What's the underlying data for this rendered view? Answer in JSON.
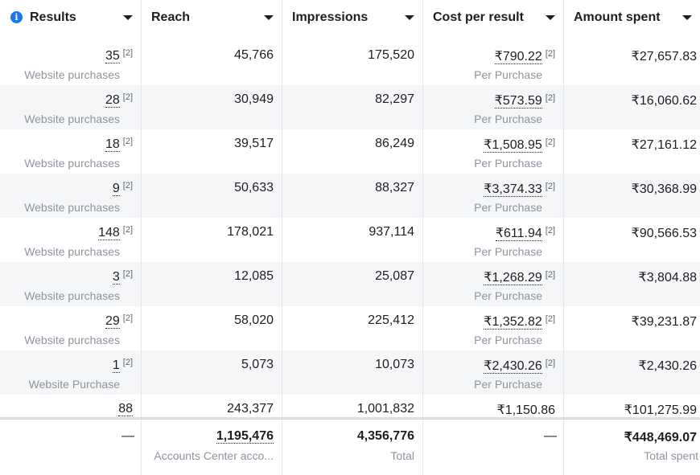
{
  "columns": [
    {
      "key": "results",
      "label": "Results",
      "has_info": true
    },
    {
      "key": "reach",
      "label": "Reach"
    },
    {
      "key": "impressions",
      "label": "Impressions"
    },
    {
      "key": "cost",
      "label": "Cost per result"
    },
    {
      "key": "spent",
      "label": "Amount spent"
    }
  ],
  "note_marker": "[2]",
  "rows": [
    {
      "results": "35",
      "results_sub": "Website purchases",
      "reach": "45,766",
      "impressions": "175,520",
      "cost": "₹790.22",
      "cost_sub": "Per Purchase",
      "spent": "₹27,657.83"
    },
    {
      "results": "28",
      "results_sub": "Website purchases",
      "reach": "30,949",
      "impressions": "82,297",
      "cost": "₹573.59",
      "cost_sub": "Per Purchase",
      "spent": "₹16,060.62"
    },
    {
      "results": "18",
      "results_sub": "Website purchases",
      "reach": "39,517",
      "impressions": "86,249",
      "cost": "₹1,508.95",
      "cost_sub": "Per Purchase",
      "spent": "₹27,161.12"
    },
    {
      "results": "9",
      "results_sub": "Website purchases",
      "reach": "50,633",
      "impressions": "88,327",
      "cost": "₹3,374.33",
      "cost_sub": "Per Purchase",
      "spent": "₹30,368.99"
    },
    {
      "results": "148",
      "results_sub": "Website purchases",
      "reach": "178,021",
      "impressions": "937,114",
      "cost": "₹611.94",
      "cost_sub": "Per Purchase",
      "spent": "₹90,566.53"
    },
    {
      "results": "3",
      "results_sub": "Website purchases",
      "reach": "12,085",
      "impressions": "25,087",
      "cost": "₹1,268.29",
      "cost_sub": "Per Purchase",
      "spent": "₹3,804.88"
    },
    {
      "results": "29",
      "results_sub": "Website purchases",
      "reach": "58,020",
      "impressions": "225,412",
      "cost": "₹1,352.82",
      "cost_sub": "Per Purchase",
      "spent": "₹39,231.87"
    },
    {
      "results": "1",
      "results_sub": "Website Purchase",
      "reach": "5,073",
      "impressions": "10,073",
      "cost": "₹2,430.26",
      "cost_sub": "Per Purchase",
      "spent": "₹2,430.26"
    }
  ],
  "partial_row": {
    "results": "88",
    "reach": "243,377",
    "impressions": "1,001,832",
    "cost": "₹1,150.86",
    "spent": "₹101,275.99"
  },
  "summary": {
    "results": "—",
    "reach": "1,195,476",
    "reach_sub": "Accounts Center acco...",
    "impressions": "4,356,776",
    "impressions_sub": "Total",
    "cost": "—",
    "spent": "₹448,469.07",
    "spent_sub": "Total spent"
  },
  "colors": {
    "info": "#1877f2",
    "border": "#e4e6eb",
    "alt_row": "#f5f6f7",
    "muted": "#8d949e"
  }
}
